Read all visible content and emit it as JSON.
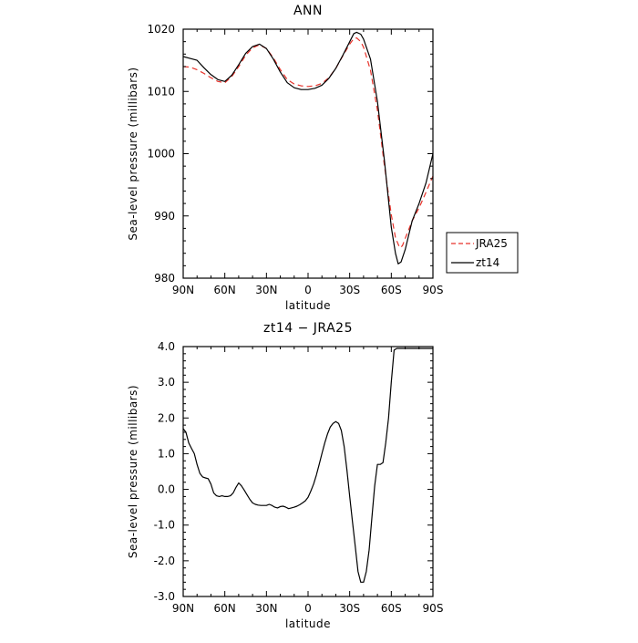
{
  "chart_data": [
    {
      "type": "line",
      "title": "ANN",
      "xlabel": "latitude",
      "ylabel": "Sea-level pressure (millibars)",
      "xlim": [
        90,
        -90
      ],
      "ylim": [
        980,
        1020
      ],
      "x_ticks": [
        {
          "value": 90,
          "label": "90N"
        },
        {
          "value": 60,
          "label": "60N"
        },
        {
          "value": 30,
          "label": "30N"
        },
        {
          "value": 0,
          "label": "0"
        },
        {
          "value": -30,
          "label": "30S"
        },
        {
          "value": -60,
          "label": "60S"
        },
        {
          "value": -90,
          "label": "90S"
        }
      ],
      "y_ticks": [
        {
          "value": 1020,
          "label": "1020"
        },
        {
          "value": 1010,
          "label": "1010"
        },
        {
          "value": 1000,
          "label": "1000"
        },
        {
          "value": 990,
          "label": "990"
        },
        {
          "value": 980,
          "label": "980"
        }
      ],
      "legend": "right",
      "series": [
        {
          "name": "JRA25",
          "color": "#e8322a",
          "dash": "dashed",
          "x": [
            90,
            85,
            80,
            75,
            70,
            65,
            60,
            55,
            50,
            45,
            40,
            35,
            30,
            25,
            20,
            15,
            10,
            5,
            0,
            -5,
            -10,
            -15,
            -20,
            -25,
            -30,
            -33,
            -35,
            -38,
            -40,
            -45,
            -50,
            -55,
            -60,
            -63,
            -66,
            -68,
            -70,
            -75,
            -80,
            -85,
            -90
          ],
          "y": [
            1014.0,
            1013.9,
            1013.5,
            1012.9,
            1012.2,
            1011.6,
            1011.4,
            1012.4,
            1014.0,
            1015.8,
            1017.0,
            1017.5,
            1016.9,
            1015.4,
            1013.5,
            1011.9,
            1011.2,
            1010.9,
            1010.8,
            1010.9,
            1011.3,
            1012.2,
            1013.7,
            1015.7,
            1017.6,
            1018.5,
            1018.6,
            1018.0,
            1017.1,
            1013.4,
            1007.0,
            998.2,
            990.2,
            986.5,
            984.9,
            985.2,
            986.4,
            989.2,
            991.3,
            993.8,
            996.4
          ]
        },
        {
          "name": "zt14",
          "color": "#000000",
          "dash": "solid",
          "x": [
            90,
            85,
            80,
            75,
            70,
            65,
            60,
            55,
            50,
            45,
            40,
            35,
            30,
            25,
            20,
            15,
            10,
            5,
            0,
            -5,
            -10,
            -15,
            -20,
            -25,
            -30,
            -33,
            -35,
            -38,
            -40,
            -45,
            -50,
            -55,
            -60,
            -63,
            -65,
            -67,
            -70,
            -75,
            -80,
            -85,
            -90
          ],
          "y": [
            1015.6,
            1015.3,
            1015.0,
            1013.8,
            1012.7,
            1011.9,
            1011.6,
            1012.6,
            1014.3,
            1016.1,
            1017.2,
            1017.6,
            1016.9,
            1015.2,
            1013.1,
            1011.4,
            1010.6,
            1010.3,
            1010.3,
            1010.5,
            1011.0,
            1012.1,
            1013.7,
            1015.8,
            1018.0,
            1019.3,
            1019.5,
            1019.2,
            1018.4,
            1015.2,
            1008.4,
            999.0,
            988.2,
            984.0,
            982.3,
            982.6,
            984.6,
            989.2,
            992.0,
            995.3,
            1000.0
          ]
        }
      ]
    },
    {
      "type": "line",
      "title": "zt14 − JRA25",
      "xlabel": "latitude",
      "ylabel": "Sea-level pressure (millibars)",
      "xlim": [
        90,
        -90
      ],
      "ylim": [
        -3.0,
        4.0
      ],
      "x_ticks": [
        {
          "value": 90,
          "label": "90N"
        },
        {
          "value": 60,
          "label": "60N"
        },
        {
          "value": 30,
          "label": "30N"
        },
        {
          "value": 0,
          "label": "0"
        },
        {
          "value": -30,
          "label": "30S"
        },
        {
          "value": -60,
          "label": "60S"
        },
        {
          "value": -90,
          "label": "90S"
        }
      ],
      "y_ticks": [
        {
          "value": 4.0,
          "label": "4.0"
        },
        {
          "value": 3.0,
          "label": "3.0"
        },
        {
          "value": 2.0,
          "label": "2.0"
        },
        {
          "value": 1.0,
          "label": "1.0"
        },
        {
          "value": 0.0,
          "label": "0.0"
        },
        {
          "value": -1.0,
          "label": "-1.0"
        },
        {
          "value": -2.0,
          "label": "-2.0"
        },
        {
          "value": -3.0,
          "label": "-3.0"
        }
      ],
      "series": [
        {
          "name": "",
          "color": "#000000",
          "dash": "solid",
          "x": [
            90,
            88,
            86,
            84,
            82,
            80,
            78,
            76,
            74,
            72,
            70,
            68,
            66,
            64,
            62,
            60,
            58,
            56,
            54,
            52,
            50,
            48,
            46,
            44,
            42,
            40,
            38,
            36,
            34,
            32,
            30,
            28,
            26,
            24,
            22,
            20,
            18,
            16,
            14,
            12,
            10,
            8,
            6,
            4,
            2,
            0,
            -2,
            -4,
            -6,
            -8,
            -10,
            -12,
            -14,
            -16,
            -18,
            -20,
            -22,
            -24,
            -26,
            -28,
            -30,
            -32,
            -34,
            -36,
            -38,
            -40,
            -42,
            -44,
            -45,
            -46,
            -48,
            -50,
            -52,
            -54,
            -56,
            -58,
            -60,
            -62,
            -64,
            -66,
            -68,
            -70,
            -72,
            -74,
            -76,
            -78,
            -80,
            -82,
            -84,
            -86,
            -88,
            -90
          ],
          "y": [
            1.7,
            1.6,
            1.3,
            1.15,
            1.0,
            0.7,
            0.45,
            0.35,
            0.32,
            0.3,
            0.15,
            -0.1,
            -0.18,
            -0.2,
            -0.18,
            -0.2,
            -0.2,
            -0.18,
            -0.1,
            0.05,
            0.18,
            0.1,
            -0.02,
            -0.15,
            -0.28,
            -0.38,
            -0.42,
            -0.44,
            -0.45,
            -0.45,
            -0.45,
            -0.42,
            -0.45,
            -0.5,
            -0.52,
            -0.48,
            -0.47,
            -0.5,
            -0.54,
            -0.52,
            -0.5,
            -0.47,
            -0.43,
            -0.38,
            -0.32,
            -0.22,
            -0.05,
            0.15,
            0.4,
            0.7,
            1.0,
            1.3,
            1.55,
            1.75,
            1.85,
            1.9,
            1.85,
            1.65,
            1.2,
            0.55,
            -0.2,
            -0.9,
            -1.6,
            -2.3,
            -2.6,
            -2.6,
            -2.3,
            -1.7,
            -1.25,
            -0.8,
            0.1,
            0.7,
            0.7,
            0.75,
            1.3,
            2.0,
            3.0,
            3.9,
            3.95,
            3.95,
            3.95,
            3.95,
            3.95,
            3.95,
            3.95,
            3.95,
            3.95,
            3.95,
            3.95,
            3.95,
            3.95,
            3.95
          ]
        }
      ]
    }
  ]
}
